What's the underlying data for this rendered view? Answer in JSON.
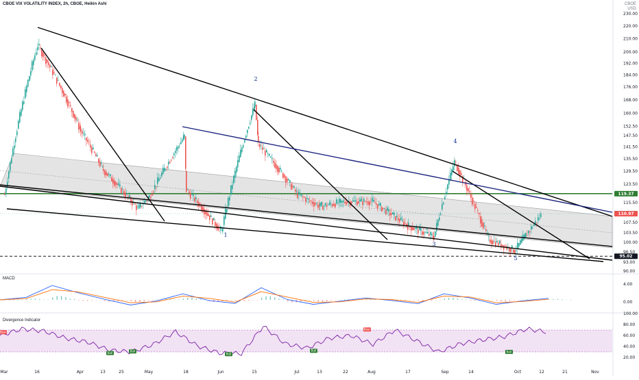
{
  "header": {
    "title": "CBOE VIX VOLATILITY INDEX, 2h, CBOE, Heikin Ashi",
    "currency_line1": "CBOE",
    "currency_line2": "USD"
  },
  "panes": {
    "macd_label": "MACD",
    "divergence_label": "Divergence Indicator"
  },
  "chart_data": [
    {
      "type": "candlestick",
      "title": "CBOE VIX VOLATILITY INDEX, 2h, CBOE, Heikin Ashi",
      "y_axis": {
        "scale": "log",
        "ticks": [
          "230.00",
          "220.00",
          "210.00",
          "200.00",
          "192.00",
          "184.00",
          "176.00",
          "168.00",
          "160.00",
          "152.50",
          "147.50",
          "141.50",
          "135.50",
          "129.50",
          "123.50",
          "115.50",
          "107.50",
          "103.50",
          "100.00",
          "96.50",
          "93.00",
          "90.00"
        ]
      },
      "x_axis": {
        "ticks": [
          "Mar",
          "16",
          "Apr",
          "13",
          "25",
          "May",
          "18",
          "Jun",
          "15",
          "Jul",
          "13",
          "22",
          "Aug",
          "17",
          "Sep",
          "14",
          "Oct",
          "12",
          "21",
          "Nov"
        ]
      },
      "price_tags": [
        {
          "label": "119.37",
          "color": "#2e7d32",
          "value": 119.37
        },
        {
          "label": "111.00",
          "color": "#26a69a",
          "value": 111.0
        },
        {
          "label": "110.97",
          "color": "#ef5350",
          "value": 110.97
        },
        {
          "label": "95.02",
          "color": "#131722",
          "value": 95.02
        }
      ],
      "wave_labels": [
        "1",
        "2",
        "3",
        "4",
        "5"
      ],
      "colors": {
        "up": "#26a69a",
        "down": "#ef5350",
        "trend": "#000000",
        "blue_line": "#1a237e",
        "support": "#2e7d32",
        "channel_fill": "#d9d9d9"
      },
      "approx_path": [
        {
          "x": "Mar",
          "y": 119
        },
        {
          "x": "16",
          "y": 205
        },
        {
          "x": "Apr",
          "y": 150
        },
        {
          "x": "13",
          "y": 130
        },
        {
          "x": "25",
          "y": 113
        },
        {
          "x": "May",
          "y": 118
        },
        {
          "x": "18",
          "y": 147
        },
        {
          "x": "18",
          "y": 121
        },
        {
          "x": "Jun",
          "y": 104
        },
        {
          "x": "15",
          "y": 165
        },
        {
          "x": "15",
          "y": 143
        },
        {
          "x": "Jul",
          "y": 119
        },
        {
          "x": "13",
          "y": 114
        },
        {
          "x": "22",
          "y": 116
        },
        {
          "x": "Aug",
          "y": 116
        },
        {
          "x": "17",
          "y": 106
        },
        {
          "x": "Sep",
          "y": 102
        },
        {
          "x": "Sep",
          "y": 134
        },
        {
          "x": "14",
          "y": 115
        },
        {
          "x": "14",
          "y": 101
        },
        {
          "x": "Oct",
          "y": 97
        },
        {
          "x": "12",
          "y": 111
        }
      ]
    },
    {
      "type": "line",
      "title": "MACD",
      "y_axis": {
        "ticks": [
          "4.00",
          "0.00"
        ]
      },
      "series": [
        {
          "color": "#2962ff",
          "values": [
            0,
            0.8,
            4.5,
            2.2,
            0.2,
            -1.6,
            -0.3,
            1.9,
            -0.2,
            -1.1,
            3.8,
            0.1,
            -1.4,
            -0.4,
            0.6,
            -0.2,
            -1.2,
            1.9,
            0.6,
            -1.4,
            -0.3,
            0.5
          ]
        },
        {
          "color": "#ff6d00",
          "values": [
            0,
            0.4,
            3.2,
            2.5,
            0.8,
            -0.9,
            -0.6,
            1.2,
            0.5,
            -0.7,
            2.6,
            0.9,
            -0.8,
            -0.6,
            0.3,
            0.1,
            -0.8,
            1.2,
            0.9,
            -0.9,
            -0.5,
            0.2
          ]
        }
      ]
    },
    {
      "type": "line",
      "title": "Divergence Indicator",
      "y_axis": {
        "ticks": [
          "100.00",
          "80.00",
          "60.00",
          "40.00",
          "20.00"
        ],
        "band": [
          30,
          70
        ]
      },
      "series": [
        {
          "color": "#7b1fa2",
          "values": [
            60,
            72,
            68,
            55,
            48,
            33,
            30,
            44,
            67,
            41,
            28,
            27,
            77,
            45,
            37,
            55,
            60,
            44,
            70,
            50,
            30,
            45,
            52,
            58,
            72,
            66
          ]
        }
      ],
      "signal_tags": [
        {
          "label": "Bear",
          "value": 66
        },
        {
          "label": "Bull",
          "value": 28
        },
        {
          "label": "Bull",
          "value": 31
        },
        {
          "label": "Bull",
          "value": 26
        },
        {
          "label": "Bull",
          "value": 32
        },
        {
          "label": "Bear",
          "value": 71
        },
        {
          "label": "Bull",
          "value": 30
        }
      ]
    }
  ]
}
